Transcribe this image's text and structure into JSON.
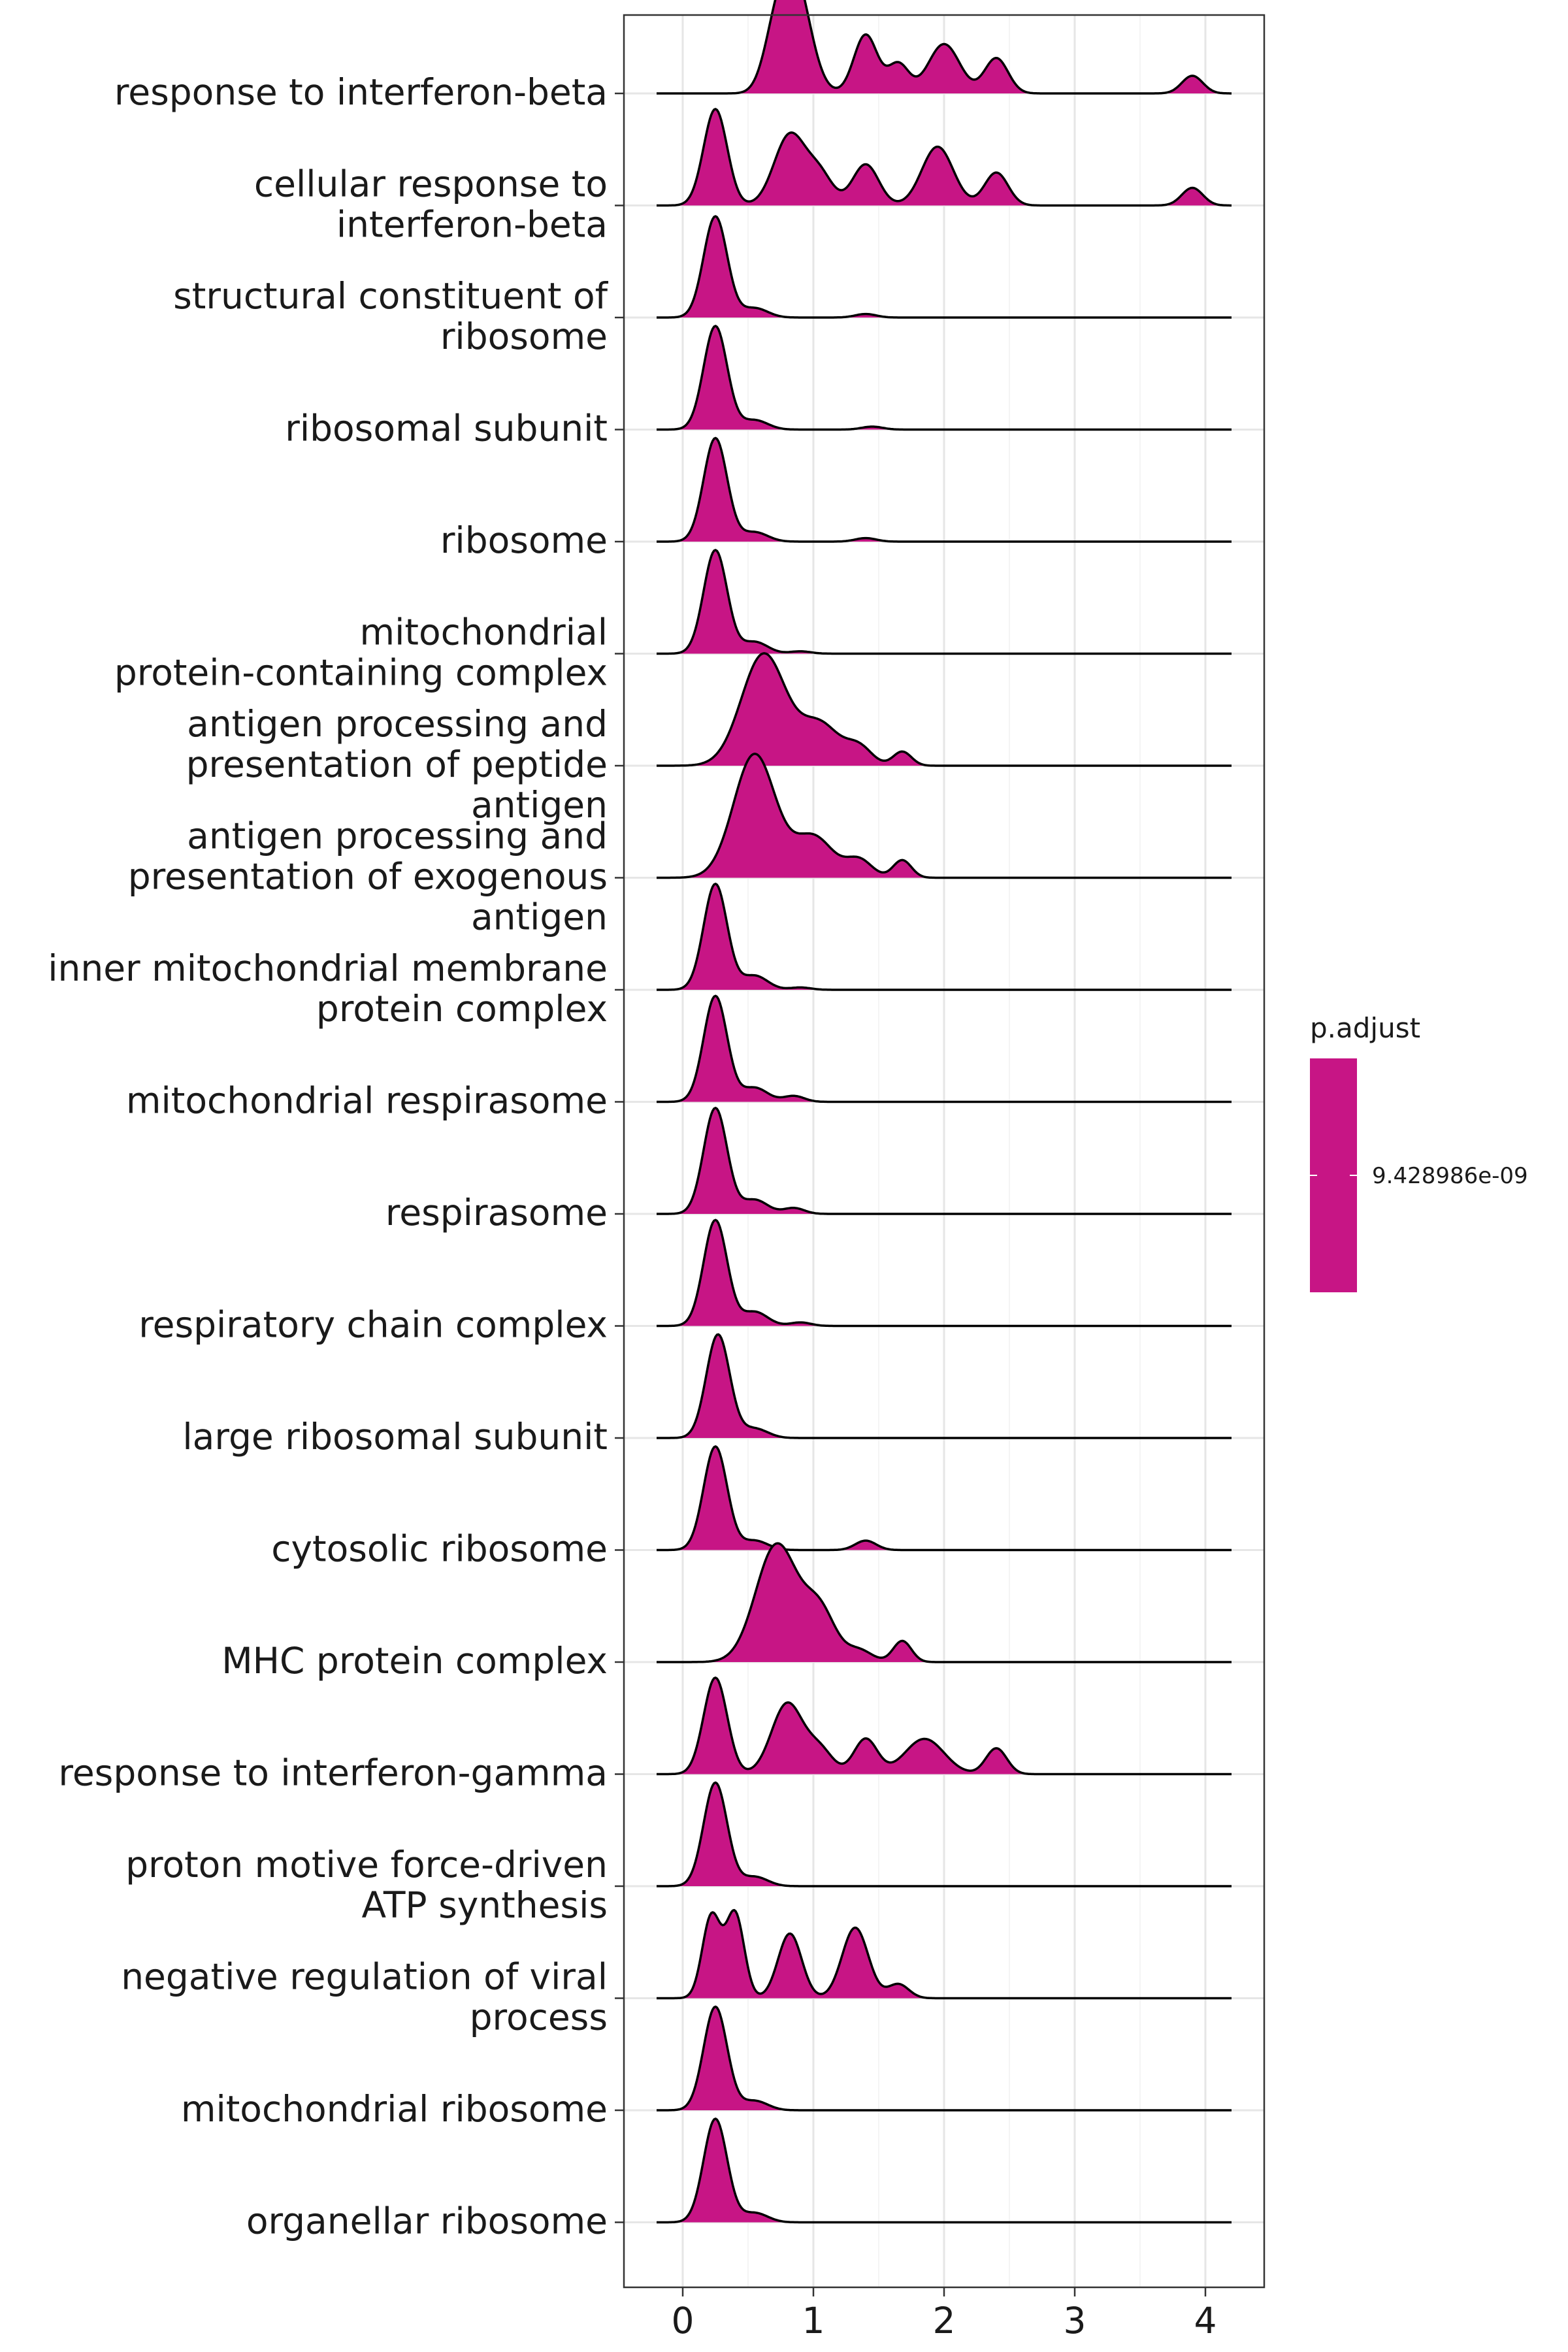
{
  "chart_data": {
    "type": "ridgeline",
    "title": "",
    "xlabel": "",
    "ylabel": "",
    "xlim": [
      -0.45,
      4.45
    ],
    "x_ticks": [
      "0",
      "1",
      "2",
      "3",
      "4"
    ],
    "grid": true,
    "fill_color": "#C71585",
    "legend": {
      "title": "p.adjust",
      "placement": "right",
      "entries": [
        "9.428986e-09"
      ]
    },
    "series": [
      {
        "name": "response to interferon-beta",
        "label_lines": [
          "response to interferon-beta"
        ],
        "start": -0.2,
        "end": 4.2,
        "peaks": [
          [
            0.85,
            1.0,
            0.12
          ],
          [
            0.7,
            0.3,
            0.09
          ],
          [
            1.4,
            0.5,
            0.09
          ],
          [
            1.65,
            0.25,
            0.08
          ],
          [
            2.0,
            0.42,
            0.12
          ],
          [
            2.4,
            0.3,
            0.09
          ],
          [
            3.9,
            0.15,
            0.08
          ]
        ]
      },
      {
        "name": "cellular response to interferon-beta",
        "label_lines": [
          "cellular response to",
          "interferon-beta"
        ],
        "start": -0.2,
        "end": 4.2,
        "peaks": [
          [
            0.25,
            0.82,
            0.09
          ],
          [
            0.82,
            0.6,
            0.12
          ],
          [
            1.05,
            0.25,
            0.1
          ],
          [
            1.4,
            0.35,
            0.1
          ],
          [
            1.95,
            0.5,
            0.12
          ],
          [
            2.4,
            0.28,
            0.09
          ],
          [
            3.9,
            0.15,
            0.08
          ]
        ]
      },
      {
        "name": "structural constituent of ribosome",
        "label_lines": [
          "structural constituent of",
          "ribosome"
        ],
        "start": -0.2,
        "end": 4.2,
        "peaks": [
          [
            0.25,
            0.86,
            0.09
          ],
          [
            0.55,
            0.08,
            0.1
          ],
          [
            1.4,
            0.03,
            0.08
          ]
        ]
      },
      {
        "name": "ribosomal subunit",
        "label_lines": [
          "ribosomal subunit"
        ],
        "start": -0.2,
        "end": 4.2,
        "peaks": [
          [
            0.25,
            0.88,
            0.09
          ],
          [
            0.55,
            0.08,
            0.1
          ],
          [
            1.45,
            0.025,
            0.08
          ]
        ]
      },
      {
        "name": "ribosome",
        "label_lines": [
          "ribosome"
        ],
        "start": -0.2,
        "end": 4.2,
        "peaks": [
          [
            0.25,
            0.88,
            0.09
          ],
          [
            0.55,
            0.08,
            0.1
          ],
          [
            1.4,
            0.03,
            0.08
          ]
        ]
      },
      {
        "name": "mitochondrial protein-containing complex",
        "label_lines": [
          "mitochondrial",
          "protein-containing complex"
        ],
        "start": -0.2,
        "end": 4.2,
        "peaks": [
          [
            0.25,
            0.88,
            0.09
          ],
          [
            0.55,
            0.1,
            0.1
          ],
          [
            0.9,
            0.02,
            0.08
          ]
        ]
      },
      {
        "name": "antigen processing and presentation of peptide antigen",
        "label_lines": [
          "antigen processing and",
          "presentation of peptide",
          "antigen"
        ],
        "start": -0.2,
        "end": 4.2,
        "peaks": [
          [
            0.62,
            0.95,
            0.17
          ],
          [
            1.05,
            0.35,
            0.15
          ],
          [
            1.35,
            0.15,
            0.1
          ],
          [
            1.68,
            0.12,
            0.07
          ]
        ]
      },
      {
        "name": "antigen processing and presentation of exogenous antigen",
        "label_lines": [
          "antigen processing and",
          "presentation of exogenous",
          "antigen"
        ],
        "start": -0.2,
        "end": 4.2,
        "peaks": [
          [
            0.55,
            1.05,
            0.16
          ],
          [
            1.0,
            0.35,
            0.15
          ],
          [
            1.35,
            0.15,
            0.1
          ],
          [
            1.68,
            0.15,
            0.07
          ]
        ]
      },
      {
        "name": "inner mitochondrial membrane protein complex",
        "label_lines": [
          "inner mitochondrial membrane",
          "protein complex"
        ],
        "start": -0.2,
        "end": 4.2,
        "peaks": [
          [
            0.25,
            0.9,
            0.09
          ],
          [
            0.55,
            0.12,
            0.1
          ],
          [
            0.9,
            0.02,
            0.08
          ]
        ]
      },
      {
        "name": "mitochondrial respirasome",
        "label_lines": [
          "mitochondrial respirasome"
        ],
        "start": -0.2,
        "end": 4.2,
        "peaks": [
          [
            0.25,
            0.9,
            0.09
          ],
          [
            0.55,
            0.12,
            0.1
          ],
          [
            0.85,
            0.05,
            0.08
          ]
        ]
      },
      {
        "name": "respirasome",
        "label_lines": [
          "respirasome"
        ],
        "start": -0.2,
        "end": 4.2,
        "peaks": [
          [
            0.25,
            0.9,
            0.09
          ],
          [
            0.55,
            0.12,
            0.1
          ],
          [
            0.85,
            0.05,
            0.08
          ]
        ]
      },
      {
        "name": "respiratory chain complex",
        "label_lines": [
          "respiratory chain complex"
        ],
        "start": -0.2,
        "end": 4.2,
        "peaks": [
          [
            0.25,
            0.9,
            0.09
          ],
          [
            0.55,
            0.12,
            0.1
          ],
          [
            0.9,
            0.03,
            0.08
          ]
        ]
      },
      {
        "name": "large ribosomal subunit",
        "label_lines": [
          "large ribosomal subunit"
        ],
        "start": -0.2,
        "end": 4.2,
        "peaks": [
          [
            0.27,
            0.88,
            0.09
          ],
          [
            0.55,
            0.08,
            0.1
          ]
        ]
      },
      {
        "name": "cytosolic ribosome",
        "label_lines": [
          "cytosolic ribosome"
        ],
        "start": -0.2,
        "end": 4.2,
        "peaks": [
          [
            0.25,
            0.88,
            0.09
          ],
          [
            0.55,
            0.08,
            0.1
          ],
          [
            1.4,
            0.08,
            0.08
          ]
        ]
      },
      {
        "name": "MHC protein complex",
        "label_lines": [
          "MHC protein complex"
        ],
        "start": -0.2,
        "end": 4.2,
        "peaks": [
          [
            0.72,
            1.0,
            0.16
          ],
          [
            1.05,
            0.42,
            0.12
          ],
          [
            1.35,
            0.1,
            0.1
          ],
          [
            1.68,
            0.18,
            0.07
          ]
        ]
      },
      {
        "name": "response to interferon-gamma",
        "label_lines": [
          "response to interferon-gamma"
        ],
        "start": -0.2,
        "end": 4.2,
        "peaks": [
          [
            0.25,
            0.82,
            0.09
          ],
          [
            0.8,
            0.6,
            0.12
          ],
          [
            1.05,
            0.2,
            0.1
          ],
          [
            1.4,
            0.3,
            0.09
          ],
          [
            1.85,
            0.3,
            0.15
          ],
          [
            2.4,
            0.22,
            0.08
          ]
        ]
      },
      {
        "name": "proton motive force-driven ATP synthesis",
        "label_lines": [
          "proton motive force-driven",
          "ATP synthesis"
        ],
        "start": -0.2,
        "end": 4.2,
        "peaks": [
          [
            0.25,
            0.88,
            0.09
          ],
          [
            0.55,
            0.08,
            0.1
          ]
        ]
      },
      {
        "name": "negative regulation of viral process",
        "label_lines": [
          "negative regulation of viral",
          "process"
        ],
        "start": -0.2,
        "end": 4.2,
        "peaks": [
          [
            0.22,
            0.7,
            0.07
          ],
          [
            0.4,
            0.72,
            0.07
          ],
          [
            0.82,
            0.55,
            0.09
          ],
          [
            1.32,
            0.6,
            0.1
          ],
          [
            1.65,
            0.12,
            0.08
          ]
        ]
      },
      {
        "name": "mitochondrial ribosome",
        "label_lines": [
          "mitochondrial ribosome"
        ],
        "start": -0.2,
        "end": 4.2,
        "peaks": [
          [
            0.25,
            0.88,
            0.09
          ],
          [
            0.55,
            0.08,
            0.1
          ]
        ]
      },
      {
        "name": "organellar ribosome",
        "label_lines": [
          "organellar ribosome"
        ],
        "start": -0.2,
        "end": 4.2,
        "peaks": [
          [
            0.25,
            0.88,
            0.09
          ],
          [
            0.55,
            0.08,
            0.1
          ]
        ]
      }
    ]
  }
}
